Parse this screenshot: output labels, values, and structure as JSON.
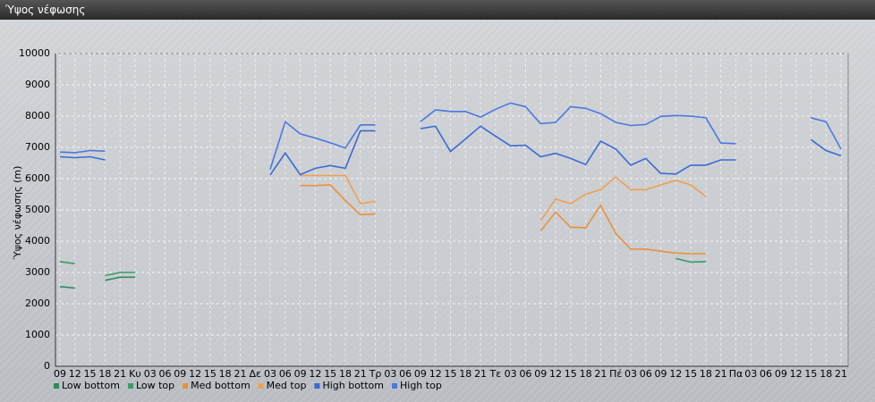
{
  "window": {
    "title": "Ύψος νέφωσης"
  },
  "chart_data": {
    "type": "line",
    "ylabel": "Ύψος νέφωσης (m)",
    "categories": [
      "09",
      "12",
      "15",
      "18",
      "21",
      "Κυ",
      "03",
      "06",
      "09",
      "12",
      "15",
      "18",
      "21",
      "Δε",
      "03",
      "06",
      "09",
      "12",
      "15",
      "18",
      "21",
      "Τρ",
      "03",
      "06",
      "09",
      "12",
      "15",
      "18",
      "21",
      "Τε",
      "03",
      "06",
      "09",
      "12",
      "15",
      "18",
      "21",
      "Πέ",
      "03",
      "06",
      "09",
      "12",
      "15",
      "18",
      "21",
      "Πα",
      "03",
      "06",
      "09",
      "12",
      "15",
      "18",
      "21"
    ],
    "ylim": [
      0,
      10000
    ],
    "yticks": [
      0,
      1000,
      2000,
      3000,
      4000,
      5000,
      6000,
      7000,
      8000,
      9000,
      10000
    ],
    "grid": true,
    "series": [
      {
        "name": "Low bottom",
        "color": "#2f8a5c",
        "values": [
          2550,
          2500,
          null,
          2750,
          2850,
          2850,
          null,
          null,
          null,
          null,
          null,
          null,
          null,
          null,
          null,
          null,
          null,
          null,
          null,
          null,
          null,
          null,
          null,
          null,
          null,
          null,
          null,
          null,
          null,
          null,
          null,
          null,
          null,
          null,
          null,
          null,
          null,
          null,
          null,
          null,
          null,
          null,
          null,
          null,
          null,
          null,
          null,
          null,
          null,
          null,
          null,
          null,
          null
        ]
      },
      {
        "name": "Low top",
        "color": "#3c9a6a",
        "values": [
          3350,
          3280,
          null,
          2900,
          3000,
          3000,
          null,
          null,
          null,
          null,
          null,
          null,
          null,
          null,
          null,
          null,
          null,
          null,
          null,
          null,
          null,
          null,
          null,
          null,
          null,
          null,
          null,
          null,
          null,
          null,
          null,
          null,
          null,
          null,
          null,
          null,
          null,
          null,
          null,
          null,
          null,
          3450,
          3330,
          3350,
          null,
          null,
          null,
          null,
          null,
          null,
          null,
          null,
          null
        ]
      },
      {
        "name": "Med bottom",
        "color": "#e8923a",
        "values": [
          null,
          null,
          null,
          null,
          null,
          null,
          null,
          null,
          null,
          null,
          null,
          null,
          null,
          null,
          null,
          null,
          5780,
          5780,
          5800,
          5300,
          4850,
          4870,
          null,
          null,
          null,
          null,
          null,
          null,
          null,
          null,
          null,
          null,
          4320,
          4930,
          4450,
          4430,
          5150,
          4250,
          3750,
          3750,
          3680,
          3620,
          3600,
          3600,
          null,
          null,
          null,
          null,
          null,
          null,
          null,
          null,
          null
        ]
      },
      {
        "name": "Med top",
        "color": "#f0a050",
        "values": [
          null,
          null,
          null,
          null,
          null,
          null,
          null,
          null,
          null,
          null,
          null,
          null,
          null,
          null,
          null,
          null,
          6100,
          6100,
          6100,
          6100,
          5200,
          5280,
          null,
          null,
          null,
          null,
          null,
          null,
          null,
          null,
          null,
          null,
          4650,
          5350,
          5200,
          5500,
          5650,
          6050,
          5650,
          5650,
          5800,
          5950,
          5800,
          5430,
          null,
          null,
          null,
          null,
          null,
          null,
          null,
          null,
          null
        ]
      },
      {
        "name": "High bottom",
        "color": "#3a6ad6",
        "values": [
          6700,
          6670,
          6700,
          6600,
          null,
          null,
          null,
          null,
          null,
          null,
          null,
          null,
          null,
          null,
          6120,
          6820,
          6130,
          6330,
          6420,
          6330,
          7530,
          7530,
          null,
          null,
          7600,
          7680,
          6870,
          7270,
          7680,
          7360,
          7050,
          7070,
          6700,
          6810,
          6650,
          6450,
          7200,
          6950,
          6430,
          6650,
          6170,
          6150,
          6430,
          6430,
          6600,
          6600,
          null,
          null,
          null,
          null,
          7250,
          6900,
          6730
        ]
      },
      {
        "name": "High top",
        "color": "#4a78e0",
        "values": [
          6850,
          6830,
          6900,
          6880,
          null,
          null,
          null,
          null,
          null,
          null,
          null,
          null,
          null,
          null,
          6300,
          7820,
          7430,
          7300,
          7150,
          6980,
          7720,
          7720,
          null,
          null,
          7820,
          8200,
          8150,
          8150,
          7970,
          8220,
          8420,
          8300,
          7760,
          7800,
          8300,
          8250,
          8080,
          7800,
          7700,
          7730,
          7990,
          8020,
          8000,
          7950,
          7140,
          7120,
          null,
          null,
          null,
          null,
          7950,
          7820,
          6950
        ]
      }
    ]
  }
}
